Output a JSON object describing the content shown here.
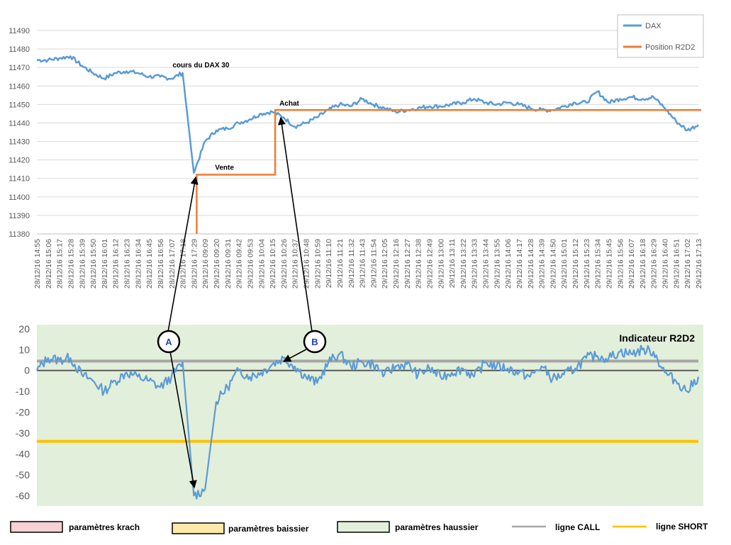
{
  "chart_data": [
    {
      "type": "line",
      "ylim": [
        11380,
        11490
      ],
      "yticks": [
        11380,
        11390,
        11400,
        11410,
        11420,
        11430,
        11440,
        11450,
        11460,
        11470,
        11480,
        11490
      ],
      "grid": true,
      "legend_placement": "top-right",
      "x": [
        "28/12/16 14:55",
        "28/12/16 15:06",
        "28/12/16 15:17",
        "28/12/16 15:28",
        "28/12/16 15:39",
        "28/12/16 15:50",
        "28/12/16 16:01",
        "28/12/16 16:12",
        "28/12/16 16:23",
        "28/12/16 16:34",
        "28/12/16 16:45",
        "28/12/16 16:56",
        "28/12/16 17:07",
        "28/12/16 17:18",
        "28/12/16 17:29",
        "29/12/16 09:09",
        "29/12/16 09:20",
        "29/12/16 09:31",
        "29/12/16 09:42",
        "29/12/16 09:53",
        "29/12/16 10:04",
        "29/12/16 10:15",
        "29/12/16 10:26",
        "29/12/16 10:37",
        "29/12/16 10:48",
        "29/12/16 10:59",
        "29/12/16 11:10",
        "29/12/16 11:21",
        "29/12/16 11:32",
        "29/12/16 11:43",
        "29/12/16 11:54",
        "29/12/16 12:05",
        "29/12/16 12:16",
        "29/12/16 12:27",
        "29/12/16 12:38",
        "29/12/16 12:49",
        "29/12/16 13:00",
        "29/12/16 13:11",
        "29/12/16 13:22",
        "29/12/16 13:33",
        "29/12/16 13:44",
        "29/12/16 13:55",
        "29/12/16 14:06",
        "29/12/16 14:17",
        "29/12/16 14:28",
        "29/12/16 14:39",
        "29/12/16 14:50",
        "29/12/16 15:01",
        "29/12/16 15:12",
        "29/12/16 15:23",
        "29/12/16 15:34",
        "29/12/16 15:45",
        "29/12/16 15:56",
        "29/12/16 16:07",
        "29/12/16 16:18",
        "29/12/16 16:29",
        "29/12/16 16:40",
        "29/12/16 16:51",
        "29/12/16 17:02",
        "29/12/16 17:13"
      ],
      "series": [
        {
          "name": "DAX",
          "color": "#5b9bd5",
          "values": [
            11474,
            11474,
            11475,
            11476,
            11471,
            11467,
            11464,
            11467,
            11468,
            11467,
            11465,
            11465,
            11464,
            11467,
            11413,
            11430,
            11436,
            11437,
            11440,
            11442,
            11445,
            11446,
            11443,
            11438,
            11440,
            11443,
            11447,
            11450,
            11449,
            11453,
            11450,
            11448,
            11446,
            11447,
            11448,
            11449,
            11449,
            11450,
            11451,
            11453,
            11451,
            11450,
            11451,
            11450,
            11448,
            11447,
            11447,
            11449,
            11451,
            11451,
            11457,
            11451,
            11453,
            11454,
            11453,
            11454,
            11448,
            11441,
            11436,
            11439
          ]
        },
        {
          "name": "Position R2D2",
          "color": "#ed7d31",
          "values": [
            null,
            null,
            null,
            null,
            null,
            null,
            null,
            null,
            null,
            null,
            null,
            null,
            null,
            null,
            11412,
            11412,
            11412,
            11412,
            11412,
            11412,
            11412,
            11447,
            11447,
            11447,
            11447,
            11447,
            11447,
            11447,
            11447,
            11447,
            11447,
            11447,
            11447,
            11447,
            11447,
            11447,
            11447,
            11447,
            11447,
            11447,
            11447,
            11447,
            11447,
            11447,
            11447,
            11447,
            11447,
            11447,
            11447,
            11447,
            11447,
            11447,
            11447,
            11447,
            11447,
            11447,
            11447,
            11447,
            11447,
            11447
          ]
        }
      ],
      "annotations": [
        {
          "text": "cours du DAX 30",
          "x": "28/12/16 17:29",
          "y": 11470
        },
        {
          "text": "Vente",
          "x": "29/12/16 09:09",
          "y": 11414
        },
        {
          "text": "Achat",
          "x": "29/12/16 10:15",
          "y": 11449
        }
      ]
    },
    {
      "type": "line",
      "title": "Indicateur R2D2",
      "ylim": [
        -65,
        22
      ],
      "yticks": [
        20,
        10,
        0,
        -10,
        -20,
        -30,
        -40,
        -50,
        -60
      ],
      "series": [
        {
          "name": "Indicateur R2D2",
          "color": "#5b9bd5",
          "values": [
            0,
            6,
            5,
            6,
            -2,
            -5,
            -10,
            -5,
            -1,
            -3,
            -5,
            -8,
            -3,
            4,
            -60,
            -57,
            -15,
            -8,
            0,
            -3,
            -1,
            3,
            6,
            2,
            -3,
            -6,
            4,
            8,
            2,
            4,
            3,
            -2,
            2,
            3,
            -2,
            1,
            -3,
            -1,
            1,
            -3,
            4,
            2,
            1,
            -1,
            -3,
            2,
            -4,
            -2,
            1,
            6,
            7,
            6,
            9,
            8,
            10,
            9,
            -1,
            -5,
            -10,
            -3
          ]
        },
        {
          "name": "ligne CALL",
          "color": "#a6a6a6",
          "values": [
            4.5
          ]
        },
        {
          "name": "ligne SHORT",
          "color": "#ffc000",
          "values": [
            -34
          ]
        }
      ],
      "reference_zero_line": 0,
      "markers": [
        {
          "label": "A",
          "points_to": [
            "Vente",
            "minimum -60"
          ]
        },
        {
          "label": "B",
          "points_to": [
            "Achat",
            "ligne CALL crossing"
          ]
        }
      ]
    }
  ],
  "legend_top": [
    {
      "name": "DAX",
      "color": "#5b9bd5"
    },
    {
      "name": "Position R2D2",
      "color": "#ed7d31"
    }
  ],
  "legend_bottom": [
    {
      "name": "paramètres krach",
      "swatch": "#f8d1d3"
    },
    {
      "name": "paramètres baissier",
      "swatch": "#fdeaa8"
    },
    {
      "name": "paramètres haussier",
      "swatch": "#e2efda"
    },
    {
      "name": "ligne CALL",
      "line": "#a6a6a6"
    },
    {
      "name": "ligne SHORT",
      "line": "#ffc000"
    }
  ],
  "colors": {
    "grid": "#d9d9d9",
    "panel2_bg": "#e2efda",
    "zero_line": "#595959",
    "arrow": "#000000"
  }
}
